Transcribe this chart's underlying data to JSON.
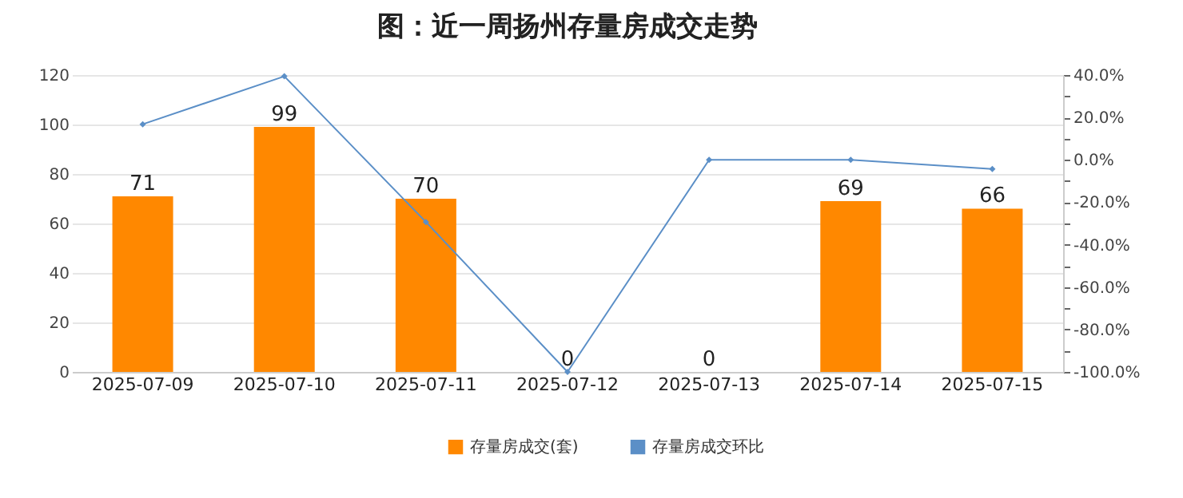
{
  "chart_data": {
    "type": "bar",
    "title": "图：近一周扬州存量房成交走势",
    "categories": [
      "2025-07-09",
      "2025-07-10",
      "2025-07-11",
      "2025-07-12",
      "2025-07-13",
      "2025-07-14",
      "2025-07-15"
    ],
    "series": [
      {
        "name": "存量房成交(套)",
        "color": "#ff8800",
        "values": [
          71,
          99,
          70,
          0,
          0,
          69,
          66
        ],
        "value_labels": [
          "71",
          "99",
          "70",
          "0",
          "0",
          "69",
          "66"
        ]
      },
      {
        "name": "存量房成交环比",
        "type": "line",
        "axis": "y2",
        "color": "#5b8fc7",
        "marker": "diamond",
        "values": [
          16.8,
          39.4,
          -29.3,
          -100,
          0,
          0,
          -4.3
        ]
      }
    ],
    "ylim": [
      0,
      120
    ],
    "yticks": [
      0,
      20,
      40,
      60,
      80,
      100,
      120
    ],
    "y2lim": [
      -100,
      40
    ],
    "y2ticks": [
      {
        "value": -100,
        "label": "-100.0%"
      },
      {
        "value": -90,
        "label": null
      },
      {
        "value": -80,
        "label": "-80.0%"
      },
      {
        "value": -70,
        "label": null
      },
      {
        "value": -60,
        "label": "-60.0%"
      },
      {
        "value": -50,
        "label": null
      },
      {
        "value": -40,
        "label": "-40.0%"
      },
      {
        "value": -30,
        "label": null
      },
      {
        "value": -20,
        "label": "-20.0%"
      },
      {
        "value": -10,
        "label": null
      },
      {
        "value": 0,
        "label": "0.0%"
      },
      {
        "value": 10,
        "label": null
      },
      {
        "value": 20,
        "label": "20.0%"
      },
      {
        "value": 30,
        "label": null
      },
      {
        "value": 40,
        "label": "40.0%"
      }
    ],
    "grid": "y",
    "legend": "bottom"
  }
}
